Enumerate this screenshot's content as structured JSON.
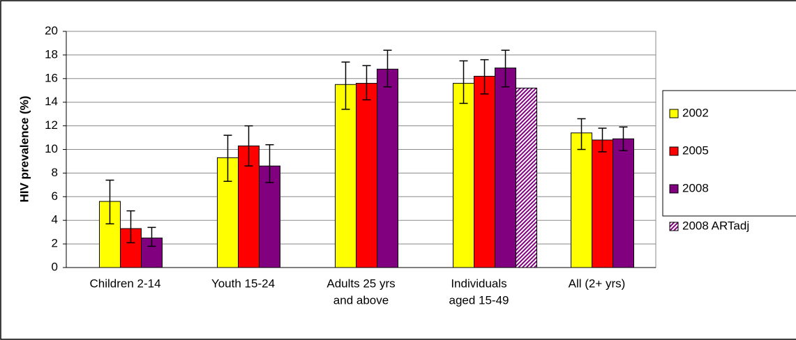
{
  "chart_data": {
    "type": "bar",
    "y_label": "HIV prevalence (%)",
    "categories": [
      [
        "Children 2-14"
      ],
      [
        "Youth 15-24"
      ],
      [
        "Adults 25 yrs",
        "and above"
      ],
      [
        "Individuals",
        "aged 15-49"
      ],
      [
        "All (2+ yrs)"
      ]
    ],
    "series": [
      {
        "name": "2002",
        "color": "#ffff00",
        "values": [
          5.6,
          9.3,
          15.5,
          15.6,
          11.4
        ],
        "error_low": [
          3.7,
          7.3,
          13.4,
          13.9,
          10.0
        ],
        "error_high": [
          7.4,
          11.2,
          17.4,
          17.5,
          12.6
        ]
      },
      {
        "name": "2005",
        "color": "#ff0000",
        "values": [
          3.3,
          10.3,
          15.6,
          16.2,
          10.8
        ],
        "error_low": [
          2.1,
          8.6,
          14.2,
          14.7,
          9.8
        ],
        "error_high": [
          4.8,
          12.0,
          17.1,
          17.6,
          11.8
        ]
      },
      {
        "name": "2008",
        "color": "#800080",
        "values": [
          2.5,
          8.6,
          16.8,
          16.9,
          10.9
        ],
        "error_low": [
          1.8,
          7.2,
          15.3,
          15.3,
          9.9
        ],
        "error_high": [
          3.4,
          10.4,
          18.4,
          18.4,
          11.9
        ]
      },
      {
        "name": "2008 ARTadj",
        "color": "#800080",
        "pattern": "hatch",
        "values": [
          null,
          null,
          null,
          15.2,
          null
        ],
        "error_low": [
          null,
          null,
          null,
          null,
          null
        ],
        "error_high": [
          null,
          null,
          null,
          null,
          null
        ]
      }
    ],
    "ylim": [
      0,
      20
    ],
    "yticks": [
      0,
      2,
      4,
      6,
      8,
      10,
      12,
      14,
      16,
      18,
      20
    ],
    "grid": true,
    "legend": "right"
  }
}
